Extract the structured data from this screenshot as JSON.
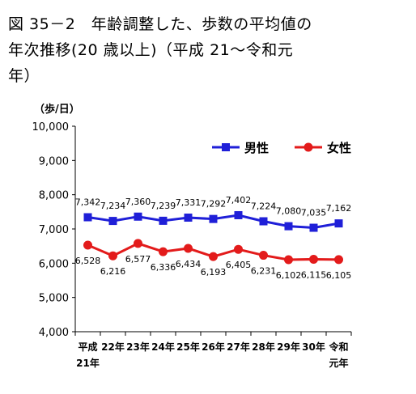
{
  "title_lines": [
    "図 35－2　年齢調整した、歩数の平均値の",
    "年次推移(20 歳以上)（平成 21～令和元",
    "年）"
  ],
  "chart_data": {
    "type": "line",
    "unit_label": "（歩/日）",
    "categories": [
      [
        "平成",
        "21年"
      ],
      [
        "22年"
      ],
      [
        "23年"
      ],
      [
        "24年"
      ],
      [
        "25年"
      ],
      [
        "26年"
      ],
      [
        "27年"
      ],
      [
        "28年"
      ],
      [
        "29年"
      ],
      [
        "30年"
      ],
      [
        "令和",
        "元年"
      ]
    ],
    "ylim": [
      4000,
      10000
    ],
    "yticks": [
      4000,
      5000,
      6000,
      7000,
      8000,
      9000,
      10000
    ],
    "ytick_labels": [
      "4,000",
      "5,000",
      "6,000",
      "7,000",
      "8,000",
      "9,000",
      "10,000"
    ],
    "grid": false,
    "legend_position": "top-right",
    "series": [
      {
        "name": "男性",
        "color": "#1f1fd8",
        "marker": "square",
        "values": [
          7342,
          7234,
          7360,
          7239,
          7331,
          7292,
          7402,
          7224,
          7080,
          7035,
          7162
        ],
        "labels": [
          "7,342",
          "7,234",
          "7,360",
          "7,239",
          "7,331",
          "7,292",
          "7,402",
          "7,224",
          "7,080",
          "7,035",
          "7,162"
        ]
      },
      {
        "name": "女性",
        "color": "#e31b1b",
        "marker": "circle",
        "values": [
          6528,
          6216,
          6577,
          6336,
          6434,
          6193,
          6405,
          6231,
          6102,
          6115,
          6105
        ],
        "labels": [
          "6,528",
          "6,216",
          "6,577",
          "6,336",
          "6,434",
          "6,193",
          "6,405",
          "6,231",
          "6,102",
          "6,115",
          "6,105"
        ]
      }
    ]
  }
}
